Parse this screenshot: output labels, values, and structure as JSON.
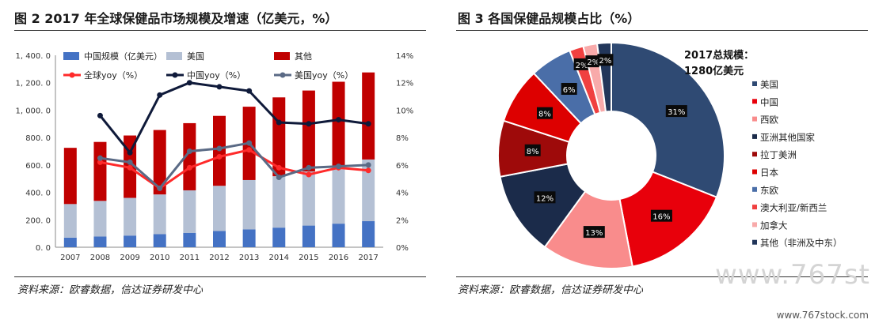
{
  "left_chart": {
    "figure_title": "图 2 2017 年全球保健品市场规模及增速（亿美元，%）",
    "source": "资料来源：欧睿数据，信达证券研发中心"
  },
  "right_chart": {
    "figure_title": "图 3 各国保健品规模占比（%）",
    "source": "资料来源：欧睿数据，信达证券研发中心",
    "annotation_line1": "2017总规模：",
    "annotation_line2": "1280亿美元"
  },
  "watermark": "www.767st",
  "watermark_url": "www.767stock.com",
  "colors": {
    "china_bar": "#4472c4",
    "us_bar": "#b4c0d4",
    "other_bar": "#c00000",
    "global_yoy": "#ff2a2a",
    "china_yoy": "#0f1a3a",
    "us_yoy": "#5a6a85"
  },
  "chart_data": [
    {
      "type": "bar",
      "stacked": true,
      "categories": [
        "2007",
        "2008",
        "2009",
        "2010",
        "2011",
        "2012",
        "2013",
        "2014",
        "2015",
        "2016",
        "2017"
      ],
      "y_ticks": [
        "0. 0",
        "200. 0",
        "400. 0",
        "600. 0",
        "800. 0",
        "1, 000. 0",
        "1, 200. 0",
        "1, 400. 0"
      ],
      "y2_ticks": [
        "0%",
        "2%",
        "4%",
        "6%",
        "8%",
        "10%",
        "12%",
        "14%"
      ],
      "ylim": [
        0,
        1400
      ],
      "y2lim": [
        0,
        14
      ],
      "grid": false,
      "legend_position": "top",
      "series": [
        {
          "name": "中国规模（亿美元）",
          "kind": "bar",
          "axis": "left",
          "values": [
            70,
            78,
            85,
            95,
            105,
            118,
            130,
            143,
            158,
            172,
            190
          ]
        },
        {
          "name": "美国",
          "kind": "bar",
          "axis": "left",
          "values": [
            245,
            260,
            275,
            290,
            310,
            330,
            360,
            375,
            395,
            420,
            450
          ]
        },
        {
          "name": "其他",
          "kind": "bar",
          "axis": "left",
          "values": [
            410,
            430,
            455,
            470,
            490,
            510,
            535,
            575,
            590,
            615,
            635
          ]
        },
        {
          "name": "全球yoy（%）",
          "kind": "line",
          "axis": "right",
          "values": [
            null,
            6.2,
            5.8,
            4.3,
            5.8,
            6.6,
            7.1,
            5.8,
            5.3,
            5.8,
            5.6
          ]
        },
        {
          "name": "中国yoy（%）",
          "kind": "line",
          "axis": "right",
          "values": [
            null,
            9.6,
            6.9,
            11.1,
            12.0,
            11.7,
            11.4,
            9.1,
            9.0,
            9.3,
            9.0
          ]
        },
        {
          "name": "美国yoy（%）",
          "kind": "line",
          "axis": "right",
          "values": [
            null,
            6.5,
            6.2,
            4.3,
            7.0,
            7.2,
            7.6,
            5.1,
            5.8,
            5.9,
            6.0
          ]
        }
      ]
    },
    {
      "type": "pie",
      "donut": true,
      "legend_position": "right",
      "labels": [
        "美国",
        "中国",
        "西欧",
        "亚洲其他国家",
        "拉丁美洲",
        "日本",
        "东欧",
        "澳大利亚/新西兰",
        "加拿大",
        "其他（非洲及中东）"
      ],
      "values": [
        31,
        16,
        13,
        12,
        8,
        8,
        6,
        2,
        2,
        2
      ],
      "value_labels": [
        "31%",
        "16%",
        "13%",
        "12%",
        "8%",
        "8%",
        "6%",
        "2%",
        "2%",
        "2%"
      ],
      "colors": [
        "#2f4a73",
        "#e8000b",
        "#f98c8c",
        "#1b2b4a",
        "#9e0a0a",
        "#dd0000",
        "#4a6ea8",
        "#f04040",
        "#f8aaaa",
        "#22365a"
      ]
    }
  ]
}
